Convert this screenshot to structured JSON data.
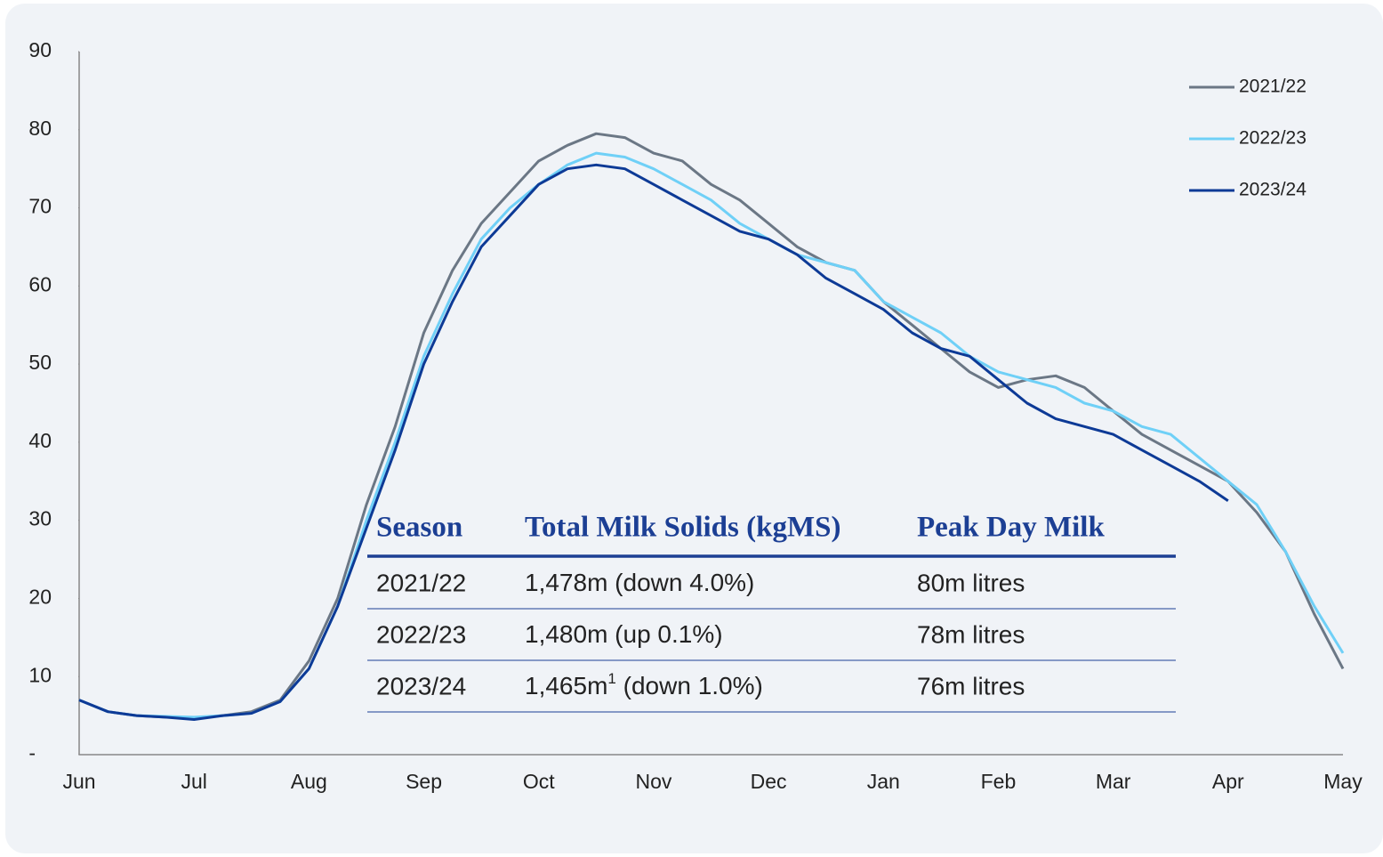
{
  "chart_data": {
    "type": "line",
    "categories": [
      "Jun",
      null,
      null,
      null,
      "Jul",
      null,
      null,
      null,
      "Aug",
      null,
      null,
      null,
      "Sep",
      null,
      null,
      null,
      "Oct",
      null,
      null,
      null,
      "Nov",
      null,
      null,
      null,
      "Dec",
      null,
      null,
      null,
      "Jan",
      null,
      null,
      null,
      "Feb",
      null,
      null,
      null,
      "Mar",
      null,
      null,
      null,
      "Apr",
      null,
      null,
      null,
      "May"
    ],
    "series": [
      {
        "name": "2021/22",
        "color": "#6b7785",
        "values": [
          7,
          5.5,
          5,
          4.8,
          4.7,
          5,
          5.5,
          7,
          12,
          20,
          32,
          42,
          54,
          62,
          68,
          72,
          76,
          78,
          79.5,
          79,
          77,
          76,
          73,
          71,
          68,
          65,
          63,
          62,
          58,
          55,
          52,
          49,
          47,
          48,
          48.5,
          47,
          44,
          41,
          39,
          37,
          35,
          31,
          26,
          18,
          11
        ]
      },
      {
        "name": "2022/23",
        "color": "#6fd0f7",
        "values": [
          7,
          5.5,
          5,
          4.9,
          4.8,
          5,
          5.3,
          6.8,
          11,
          19,
          30,
          40,
          51,
          59,
          66,
          70,
          73,
          75.5,
          77,
          76.5,
          75,
          73,
          71,
          68,
          66,
          64,
          63,
          62,
          58,
          56,
          54,
          51,
          49,
          48,
          47,
          45,
          44,
          42,
          41,
          38,
          35,
          32,
          26,
          19,
          13
        ]
      },
      {
        "name": "2023/24",
        "color": "#0d3a96",
        "values": [
          7,
          5.5,
          5,
          4.8,
          4.5,
          5,
          5.3,
          6.8,
          11,
          19,
          29,
          39,
          50,
          58,
          65,
          69,
          73,
          75,
          75.5,
          75,
          73,
          71,
          69,
          67,
          66,
          64,
          61,
          59,
          57,
          54,
          52,
          51,
          48,
          45,
          43,
          42,
          41,
          39,
          37,
          35,
          32.5,
          null,
          null,
          null,
          null
        ]
      }
    ],
    "ylim": [
      0,
      90
    ],
    "yticks": [
      {
        "value": 0,
        "label": "-"
      },
      10,
      20,
      30,
      40,
      50,
      60,
      70,
      80,
      90
    ],
    "grid": false,
    "legend": "top-right"
  },
  "table": {
    "headers": [
      "Season",
      "Total Milk Solids (kgMS)",
      "Peak Day Milk"
    ],
    "rows": [
      [
        "2021/22",
        [
          "1,478m (down 4.0%)"
        ],
        "80m litres"
      ],
      [
        "2022/23",
        [
          "1,480m (up 0.1%)"
        ],
        "78m litres"
      ],
      [
        "2023/24",
        [
          "1,465m",
          "1",
          " (down 1.0%)"
        ],
        "76m litres"
      ]
    ]
  }
}
